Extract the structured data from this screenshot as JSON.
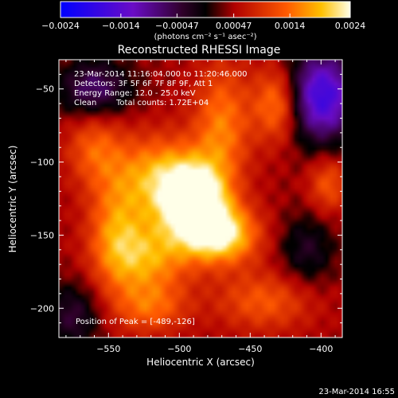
{
  "chart_data": {
    "type": "heatmap",
    "title": "Reconstructed RHESSI Image",
    "xlabel": "Heliocentric X (arcsec)",
    "ylabel": "Heliocentric Y (arcsec)",
    "xlim": [
      -585,
      -385
    ],
    "ylim": [
      -220,
      -30
    ],
    "x_ticks": [
      -550,
      -500,
      -450,
      -400
    ],
    "x_tick_labels": [
      "−550",
      "−500",
      "−450",
      "−400"
    ],
    "y_ticks": [
      -50,
      -100,
      -150,
      -200
    ],
    "y_tick_labels": [
      "−50",
      "−100",
      "−150",
      "−200"
    ],
    "colorbar": {
      "range": [
        -0.0024,
        0.0024
      ],
      "ticks": [
        -0.0024,
        -0.0014,
        -0.00047,
        0.00047,
        0.0014,
        0.0024
      ],
      "tick_labels": [
        "−0.0024",
        "−0.0014",
        "−0.00047",
        "0.00047",
        "0.0014",
        "0.0024"
      ],
      "unit": "(photons cm⁻² s⁻¹ asec⁻²)"
    },
    "annotations": {
      "time_range": "23-Mar-2014 11:16:04.000 to 11:20:46.000",
      "detectors": "Detectors: 3F 5F 6F 7F 8F 9F, Att 1",
      "energy": "Energy Range: 12.0 - 25.0 keV",
      "algorithm": "Clean",
      "total_counts": "Total counts: 1.72E+04",
      "peak": "Position of Peak = [-489,-126]"
    },
    "peak_position": [
      -489,
      -126
    ],
    "timestamp": "23-Mar-2014 16:55",
    "blobs": [
      {
        "x": -490,
        "y": -127,
        "amp": 1.0,
        "sx": 16,
        "sy": 18
      },
      {
        "x": -470,
        "y": -150,
        "amp": 0.75,
        "sx": 18,
        "sy": 14
      },
      {
        "x": -515,
        "y": -110,
        "amp": 0.55,
        "sx": 22,
        "sy": 20
      },
      {
        "x": -470,
        "y": -75,
        "amp": 0.45,
        "sx": 14,
        "sy": 30
      },
      {
        "x": -430,
        "y": -60,
        "amp": 0.55,
        "sx": 12,
        "sy": 18
      },
      {
        "x": -545,
        "y": -150,
        "amp": 0.45,
        "sx": 14,
        "sy": 28
      },
      {
        "x": -520,
        "y": -165,
        "amp": 0.5,
        "sx": 20,
        "sy": 18
      },
      {
        "x": -560,
        "y": -90,
        "amp": 0.35,
        "sx": 14,
        "sy": 18
      },
      {
        "x": -440,
        "y": -195,
        "amp": 0.35,
        "sx": 24,
        "sy": 14
      },
      {
        "x": -520,
        "y": -200,
        "amp": 0.35,
        "sx": 18,
        "sy": 12
      },
      {
        "x": -395,
        "y": -115,
        "amp": 0.35,
        "sx": 10,
        "sy": 14
      },
      {
        "x": -400,
        "y": -55,
        "amp": -0.9,
        "sx": 18,
        "sy": 22
      },
      {
        "x": -560,
        "y": -50,
        "amp": -0.5,
        "sx": 18,
        "sy": 14
      },
      {
        "x": -575,
        "y": -205,
        "amp": -0.35,
        "sx": 14,
        "sy": 16
      },
      {
        "x": -410,
        "y": -160,
        "amp": -0.3,
        "sx": 14,
        "sy": 18
      }
    ]
  }
}
